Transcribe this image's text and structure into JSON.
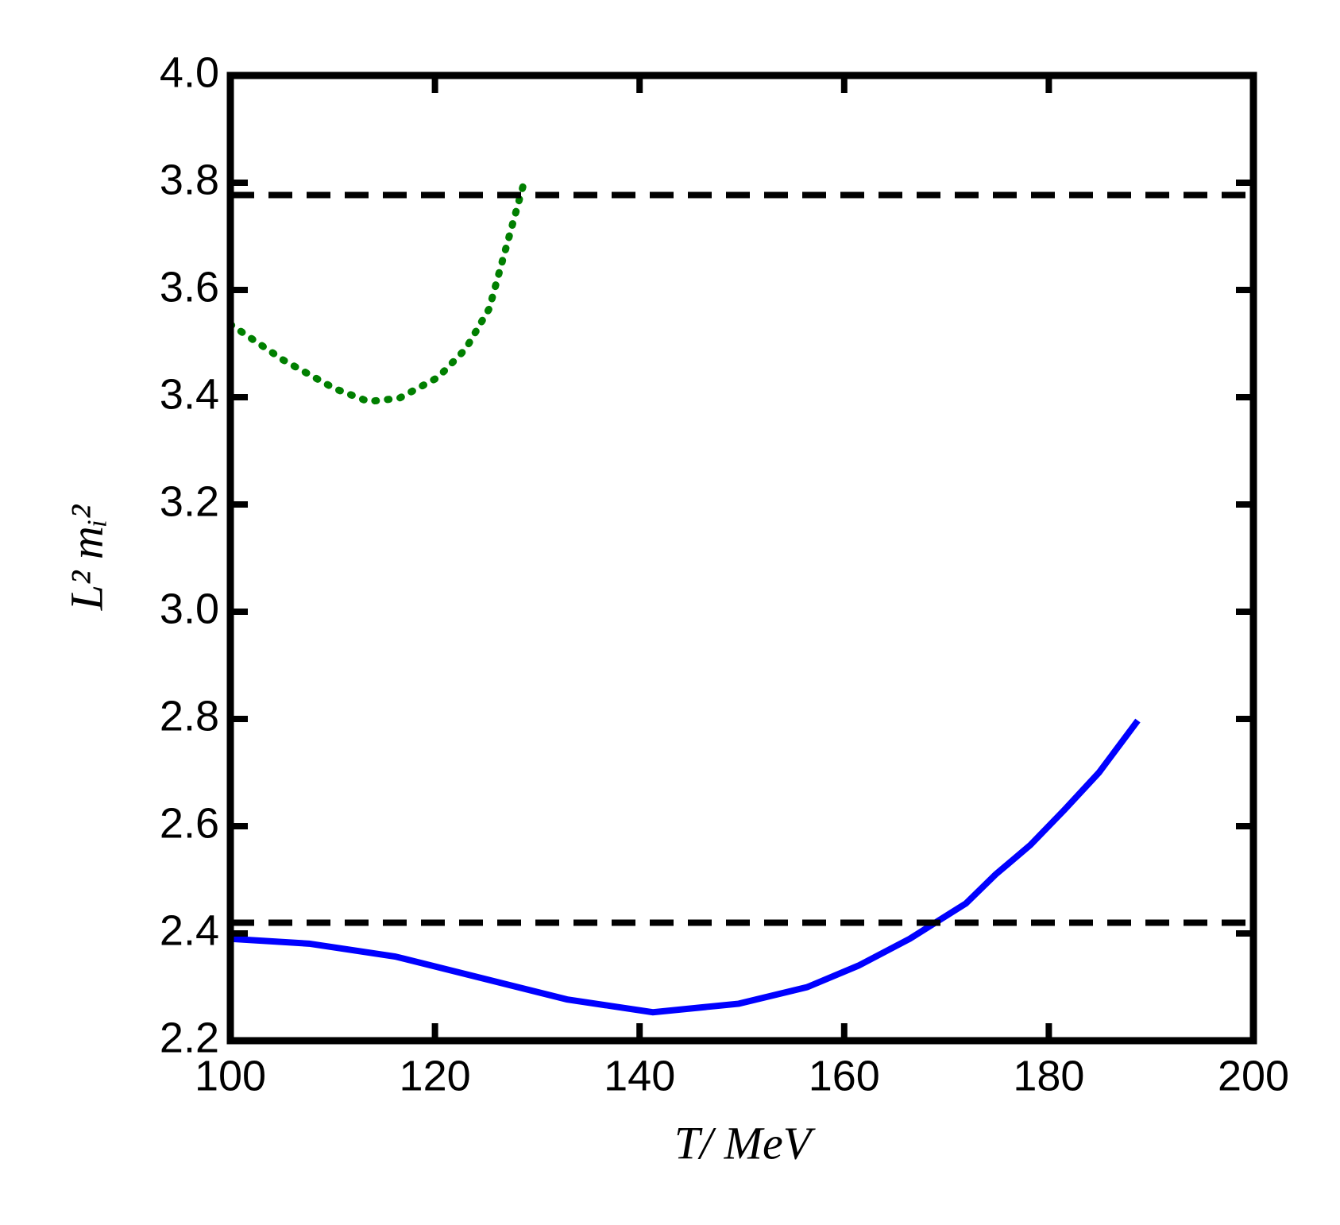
{
  "chart_data": {
    "type": "line",
    "xlabel": "T/ MeV",
    "ylabel": "L² mᵢ²",
    "xlim": [
      100,
      200
    ],
    "xticks": [
      100,
      120,
      140,
      160,
      180,
      200
    ],
    "ylim": [
      2.2,
      4.0
    ],
    "yticks": [
      2.2,
      2.4,
      2.6,
      2.8,
      {
        "value": 3,
        "label": "3.0"
      },
      3.2,
      3.4,
      3.6,
      3.8,
      {
        "value": 4,
        "label": "4.0"
      }
    ],
    "grid": false,
    "series": [
      {
        "color": "#0000ff",
        "style": "solid",
        "x": [
          100,
          107.7,
          116.1,
          124.5,
          132.9,
          141.3,
          149.7,
          156.4,
          161.4,
          166.4,
          171.9,
          174.8,
          178.2,
          181.5,
          184.9,
          188.7
        ],
        "values": [
          2.39,
          2.381,
          2.357,
          2.317,
          2.277,
          2.253,
          2.269,
          2.3,
          2.34,
          2.39,
          2.456,
          2.51,
          2.565,
          2.63,
          2.7,
          2.797
        ]
      },
      {
        "color": "#007f00",
        "style": "dotted",
        "x": [
          100,
          105.2,
          110.2,
          113.5,
          116.5,
          120.3,
          123,
          125.3,
          127.4,
          128.7
        ],
        "values": [
          3.536,
          3.469,
          3.416,
          3.392,
          3.398,
          3.437,
          3.49,
          3.565,
          3.71,
          3.8
        ]
      },
      {
        "color": "#000000",
        "style": "dashed",
        "x": [
          100,
          200
        ],
        "values": [
          3.777,
          3.777
        ]
      },
      {
        "color": "#000000",
        "style": "dashed",
        "x": [
          100,
          200
        ],
        "values": [
          2.42,
          2.42
        ]
      }
    ]
  }
}
